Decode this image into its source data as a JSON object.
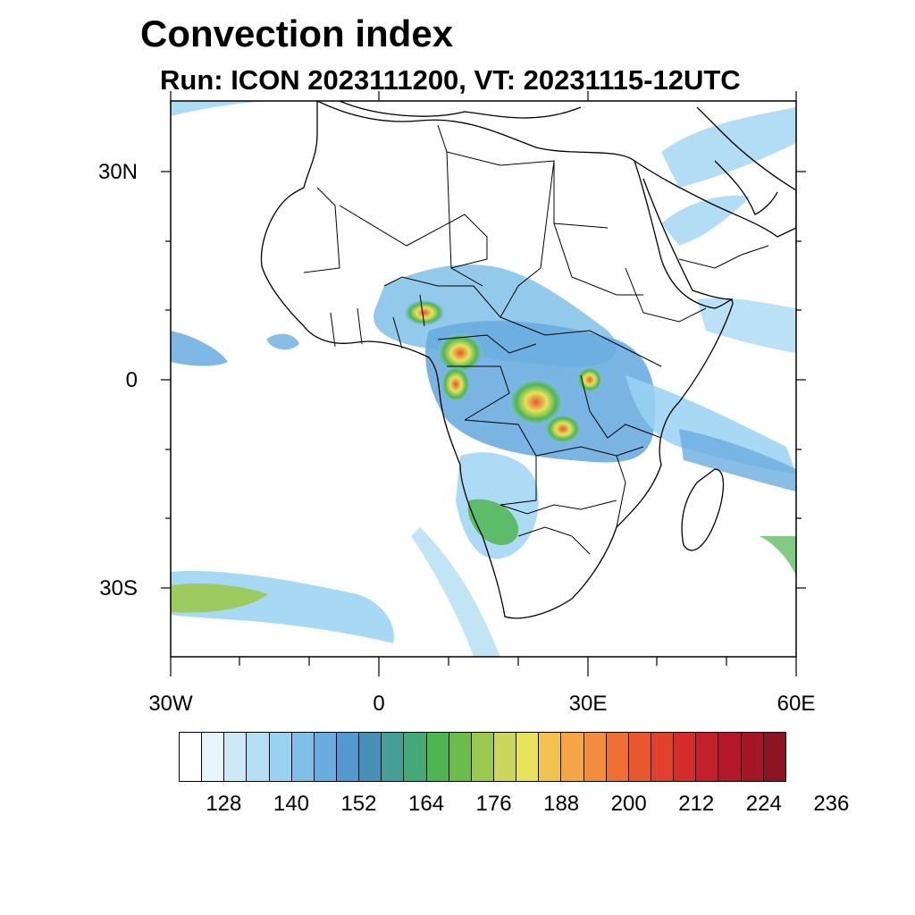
{
  "title": "Convection index",
  "subtitle": "Run: ICON 2023111200,  VT: 20231115-12UTC",
  "axes": {
    "y_labels": [
      "30N",
      "0",
      "30S"
    ],
    "x_labels": [
      "30W",
      "0",
      "30E",
      "60E"
    ],
    "lon_range": [
      -30,
      60
    ],
    "lat_range": [
      -40,
      40
    ]
  },
  "colorbar": {
    "labels": [
      "128",
      "140",
      "152",
      "164",
      "176",
      "188",
      "200",
      "212",
      "224",
      "236"
    ],
    "colors": [
      "#ffffff",
      "#e6f4fb",
      "#cde9f6",
      "#b3def4",
      "#99d2f2",
      "#80bfe8",
      "#6aace0",
      "#5597cf",
      "#4a8fb8",
      "#459e97",
      "#44a877",
      "#4fb550",
      "#6bbd4a",
      "#9bc84f",
      "#cad75a",
      "#e7e25c",
      "#f2c44f",
      "#f5a748",
      "#f28c3f",
      "#ee6e34",
      "#e8572e",
      "#e0402c",
      "#d42c2c",
      "#c51f2c",
      "#b3172a",
      "#a31626",
      "#8d1522"
    ]
  }
}
